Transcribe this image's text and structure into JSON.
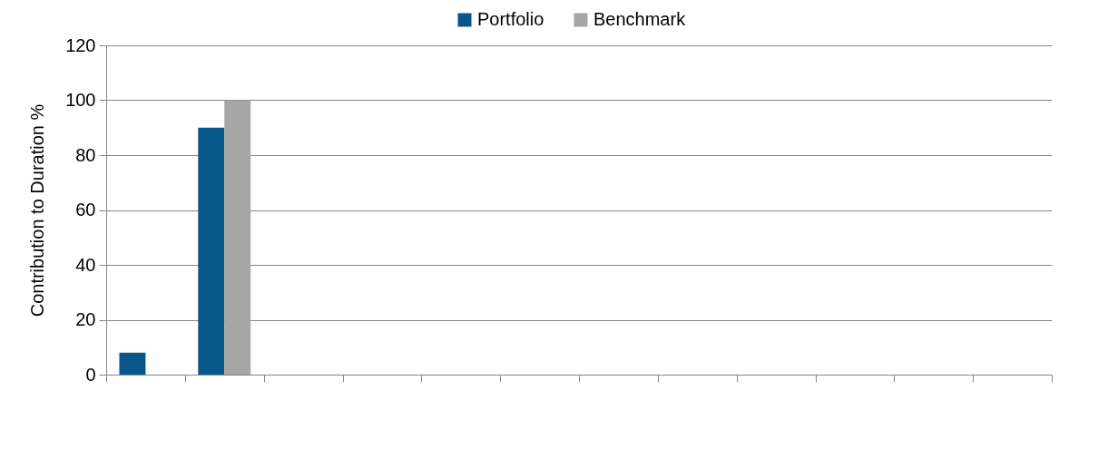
{
  "chart_data": {
    "type": "bar",
    "ylabel": "Contribution to Duration %",
    "categories": [
      null,
      null,
      null,
      null,
      null,
      null,
      null,
      null,
      null,
      null,
      null,
      null
    ],
    "series": [
      {
        "name": "Portfolio",
        "color": "#08578a",
        "values": [
          8,
          90,
          null,
          null,
          null,
          null,
          null,
          null,
          null,
          null,
          null,
          null
        ]
      },
      {
        "name": "Benchmark",
        "color": "#a6a6a6",
        "values": [
          null,
          100,
          null,
          null,
          null,
          null,
          null,
          null,
          null,
          null,
          null,
          null
        ]
      }
    ],
    "ylim": [
      0,
      120
    ],
    "yticks": [
      0,
      20,
      40,
      60,
      80,
      100,
      120
    ],
    "grid": "y",
    "legend": "top",
    "tick_labels": "y"
  }
}
